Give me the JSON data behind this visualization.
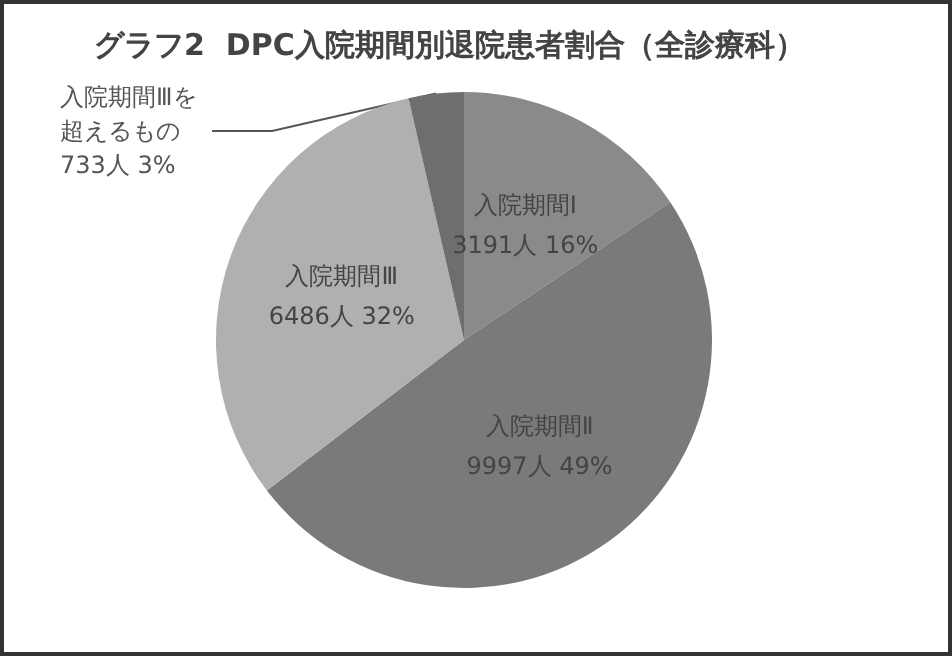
{
  "chart_data": {
    "type": "pie",
    "title": "グラフ2  DPC入院期間別退院患者割合（全診療科）",
    "categories": [
      "入院期間Ⅰ",
      "入院期間Ⅱ",
      "入院期間Ⅲ",
      "入院期間Ⅲを超えるもの"
    ],
    "values": [
      3191,
      9997,
      6486,
      733
    ],
    "value_labels": [
      "3191人 16%",
      "9997人 49%",
      "6486人 32%",
      "733人 3%"
    ],
    "colors": [
      "#8a8a8a",
      "#7a7a7a",
      "#b0b0b0",
      "#6e6e6e"
    ],
    "legend": false
  }
}
